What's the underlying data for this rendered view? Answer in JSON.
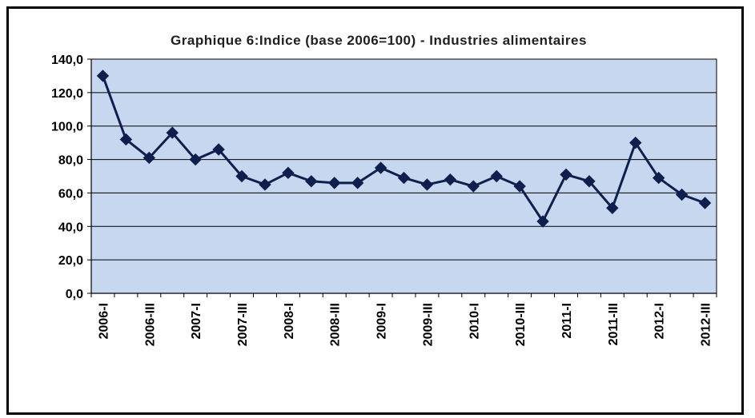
{
  "chart_data": {
    "type": "line",
    "title": "Graphique 6:Indice (base 2006=100) - Industries alimentaires",
    "xlabel": "",
    "ylabel": "",
    "ylim": [
      0,
      140
    ],
    "yticks": [
      "0,0",
      "20,0",
      "40,0",
      "60,0",
      "80,0",
      "100,0",
      "120,0",
      "140,0"
    ],
    "ytick_values": [
      0,
      20,
      40,
      60,
      80,
      100,
      120,
      140
    ],
    "categories": [
      "2006-I",
      "2006-II",
      "2006-III",
      "2006-IV",
      "2007-I",
      "2007-II",
      "2007-III",
      "2007-IV",
      "2008-I",
      "2008-II",
      "2008-III",
      "2008-IV",
      "2009-I",
      "2009-II",
      "2009-III",
      "2009-IV",
      "2010-I",
      "2010-II",
      "2010-III",
      "2010-IV",
      "2011-I",
      "2011-II",
      "2011-III",
      "2011-IV",
      "2012-I",
      "2012-II",
      "2012-III"
    ],
    "tick_labels_shown": [
      "2006-I",
      "2006-III",
      "2007-I",
      "2007-III",
      "2008-I",
      "2008-III",
      "2009-I",
      "2009-III",
      "2010-I",
      "2010-III",
      "2011-I",
      "2011-III",
      "2012-I",
      "2012-III"
    ],
    "values": [
      130,
      92,
      81,
      96,
      80,
      86,
      70,
      65,
      72,
      67,
      66,
      66,
      75,
      69,
      65,
      68,
      64,
      70,
      64,
      43,
      71,
      67,
      51,
      90,
      69,
      59,
      54
    ],
    "grid": true,
    "legend": "none",
    "colors": {
      "plot_background": "#c6d7ef",
      "line": "#0e1f4d",
      "marker": "#0e1f4d",
      "gridline": "#000000",
      "frame": "#000000"
    }
  }
}
